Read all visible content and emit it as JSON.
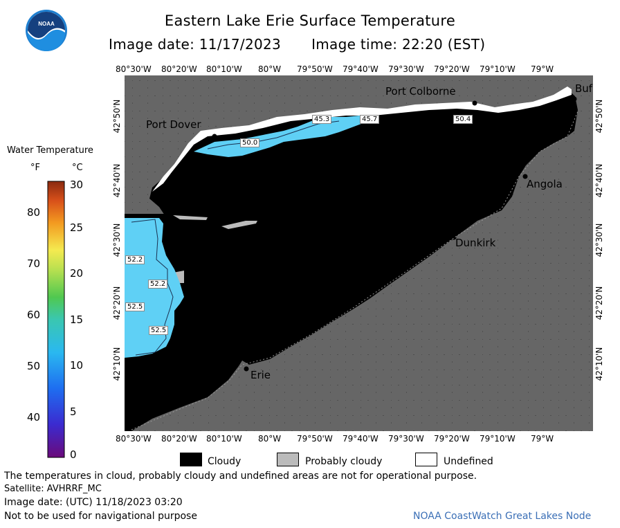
{
  "header": {
    "title": "Eastern Lake Erie Surface Temperature",
    "image_date": "Image date: 11/17/2023",
    "image_time": "Image time: 22:20 (EST)"
  },
  "logo": {
    "text": "NOAA",
    "icon": "noaa-logo-icon"
  },
  "map": {
    "lon_ticks": [
      "80°30'W",
      "80°20'W",
      "80°10'W",
      "80°W",
      "79°50'W",
      "79°40'W",
      "79°30'W",
      "79°20'W",
      "79°10'W",
      "79°W"
    ],
    "lat_ticks": [
      "42°50'N",
      "42°40'N",
      "42°30'N",
      "42°20'N",
      "42°10'N"
    ],
    "cities": {
      "port_colborne": "Port Colborne",
      "port_dover": "Port Dover",
      "buffalo": "Buf",
      "angola": "Angola",
      "dunkirk": "Dunkirk",
      "erie": "Erie"
    },
    "temp_labels": [
      "45.3",
      "45.7",
      "50.4",
      "50.0",
      "52.2",
      "52.2",
      "52.5",
      "52.5"
    ],
    "colors": {
      "water_land": "#666666",
      "cloud": "#000000",
      "probably_cloudy": "#bbbbbb",
      "undefined": "#ffffff",
      "warm_water": "#5fd0f5"
    }
  },
  "legend": {
    "title": "Water Temperature",
    "unit_f": "°F",
    "unit_c": "°C",
    "f_labels": [
      "80",
      "70",
      "60",
      "50",
      "40"
    ],
    "c_labels": [
      "30",
      "25",
      "20",
      "15",
      "10",
      "5",
      "0"
    ],
    "keys": [
      {
        "label": "Cloudy",
        "color": "#000000"
      },
      {
        "label": "Probably cloudy",
        "color": "#bbbbbb"
      },
      {
        "label": "Undefined",
        "color": "#ffffff"
      }
    ]
  },
  "footer": {
    "disclaimer": "The temperatures in cloud, probably cloudy and undefined areas are not for operational purpose.",
    "satellite": "Satellite: AVHRRF_MC",
    "utc_date": "Image date: (UTC) 11/18/2023  03:20",
    "nav_warning": "Not to be used for navigational purpose",
    "credit": "NOAA CoastWatch Great Lakes Node"
  }
}
